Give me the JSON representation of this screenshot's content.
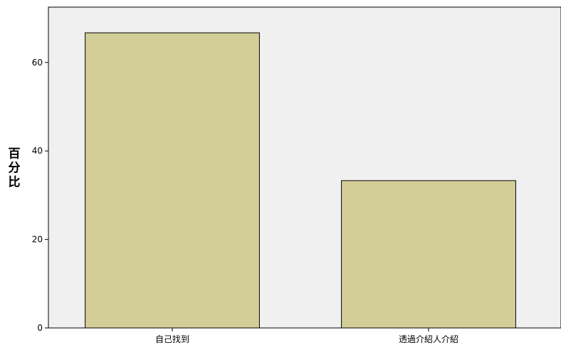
{
  "chart_data": {
    "type": "bar",
    "categories": [
      "自己找到",
      "透過介紹人介紹"
    ],
    "values": [
      66.7,
      33.3
    ],
    "ylabel": "百分比",
    "xlabel": "",
    "ylim": [
      0,
      72.5
    ],
    "yticks": [
      0,
      20,
      40,
      60
    ],
    "grid": false,
    "colors": {
      "plot_background": "#f0f0f0",
      "bar_fill": "#d3ce97",
      "bar_stroke": "#000000",
      "axis": "#000000"
    }
  }
}
